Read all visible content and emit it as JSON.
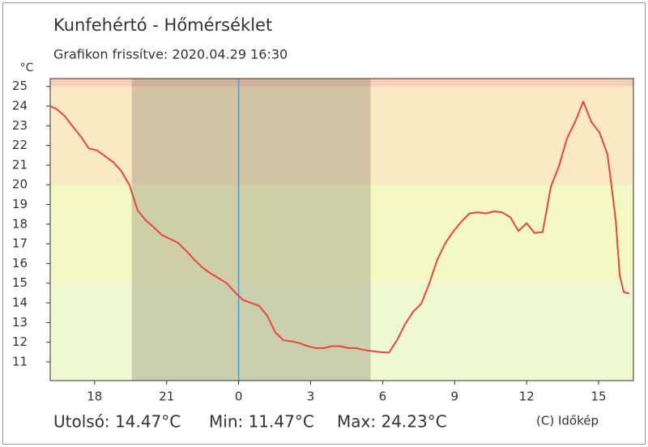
{
  "chart_data": {
    "type": "line",
    "title": "Kunfehértó - Hőmérséklet",
    "subtitle": "Grafikon frissítve: 2020.04.29 16:30",
    "y_label": "°C",
    "footer": [
      "Utolsó: 14.47°C",
      "Min: 11.47°C",
      "Max: 24.23°C"
    ],
    "credit": "(C) Időkép",
    "xlim": [
      16.15,
      40.45
    ],
    "ylim": [
      10.05,
      25.4
    ],
    "xticks": [
      18,
      21,
      {
        "value": 24,
        "label": "0"
      },
      {
        "value": 27,
        "label": "3"
      },
      {
        "value": 30,
        "label": "6"
      },
      {
        "value": 33,
        "label": "9"
      },
      {
        "value": 36,
        "label": "12"
      },
      {
        "value": 39,
        "label": "15"
      }
    ],
    "yticks": [
      11,
      12,
      13,
      14,
      15,
      16,
      17,
      18,
      19,
      20,
      21,
      22,
      23,
      24,
      25
    ],
    "band_edges": [
      15,
      20,
      25
    ],
    "band_colors": [
      "#eef9d2",
      "#f3f8c4",
      "#fbe9c4",
      "#f8cdb6"
    ],
    "shade": [
      19.55,
      29.5
    ],
    "shade_color": "rgba(110,100,90,0.28)",
    "marker_x": 24,
    "marker_color": "#4a9fd0",
    "x": [
      16.15,
      16.42,
      16.75,
      17.1,
      17.43,
      17.76,
      18.1,
      18.44,
      18.78,
      19.11,
      19.45,
      19.79,
      20.13,
      20.46,
      20.8,
      21.14,
      21.48,
      21.81,
      22.15,
      22.49,
      22.83,
      23.17,
      23.5,
      23.84,
      24.18,
      24.52,
      24.85,
      25.19,
      25.53,
      25.87,
      26.2,
      26.54,
      26.88,
      27.22,
      27.55,
      27.89,
      28.23,
      28.57,
      28.9,
      29.24,
      29.58,
      29.92,
      30.26,
      30.6,
      30.93,
      31.27,
      31.61,
      31.95,
      32.28,
      32.62,
      32.96,
      33.3,
      33.63,
      33.97,
      34.31,
      34.65,
      34.98,
      35.32,
      35.66,
      36.0,
      36.33,
      36.67,
      37.01,
      37.35,
      37.68,
      38.02,
      38.36,
      38.7,
      39.04,
      39.37,
      39.71,
      39.88,
      40.05,
      40.28
    ],
    "series": [
      {
        "name": "Hőmérséklet",
        "color": "#e8453c",
        "values": [
          24.0,
          23.85,
          23.5,
          22.95,
          22.45,
          21.85,
          21.75,
          21.45,
          21.15,
          20.7,
          20.0,
          18.7,
          18.2,
          17.85,
          17.45,
          17.25,
          17.05,
          16.65,
          16.2,
          15.8,
          15.5,
          15.25,
          15.0,
          14.55,
          14.15,
          14.0,
          13.85,
          13.35,
          12.5,
          12.1,
          12.05,
          11.95,
          11.8,
          11.7,
          11.7,
          11.8,
          11.8,
          11.7,
          11.7,
          11.6,
          11.55,
          11.5,
          11.47,
          12.1,
          12.9,
          13.55,
          13.95,
          15.0,
          16.2,
          17.05,
          17.65,
          18.15,
          18.55,
          18.6,
          18.55,
          18.65,
          18.6,
          18.35,
          17.65,
          18.05,
          17.55,
          17.6,
          19.9,
          20.95,
          22.35,
          23.2,
          24.23,
          23.2,
          22.65,
          21.55,
          18.25,
          15.4,
          14.55,
          14.47
        ]
      }
    ]
  }
}
